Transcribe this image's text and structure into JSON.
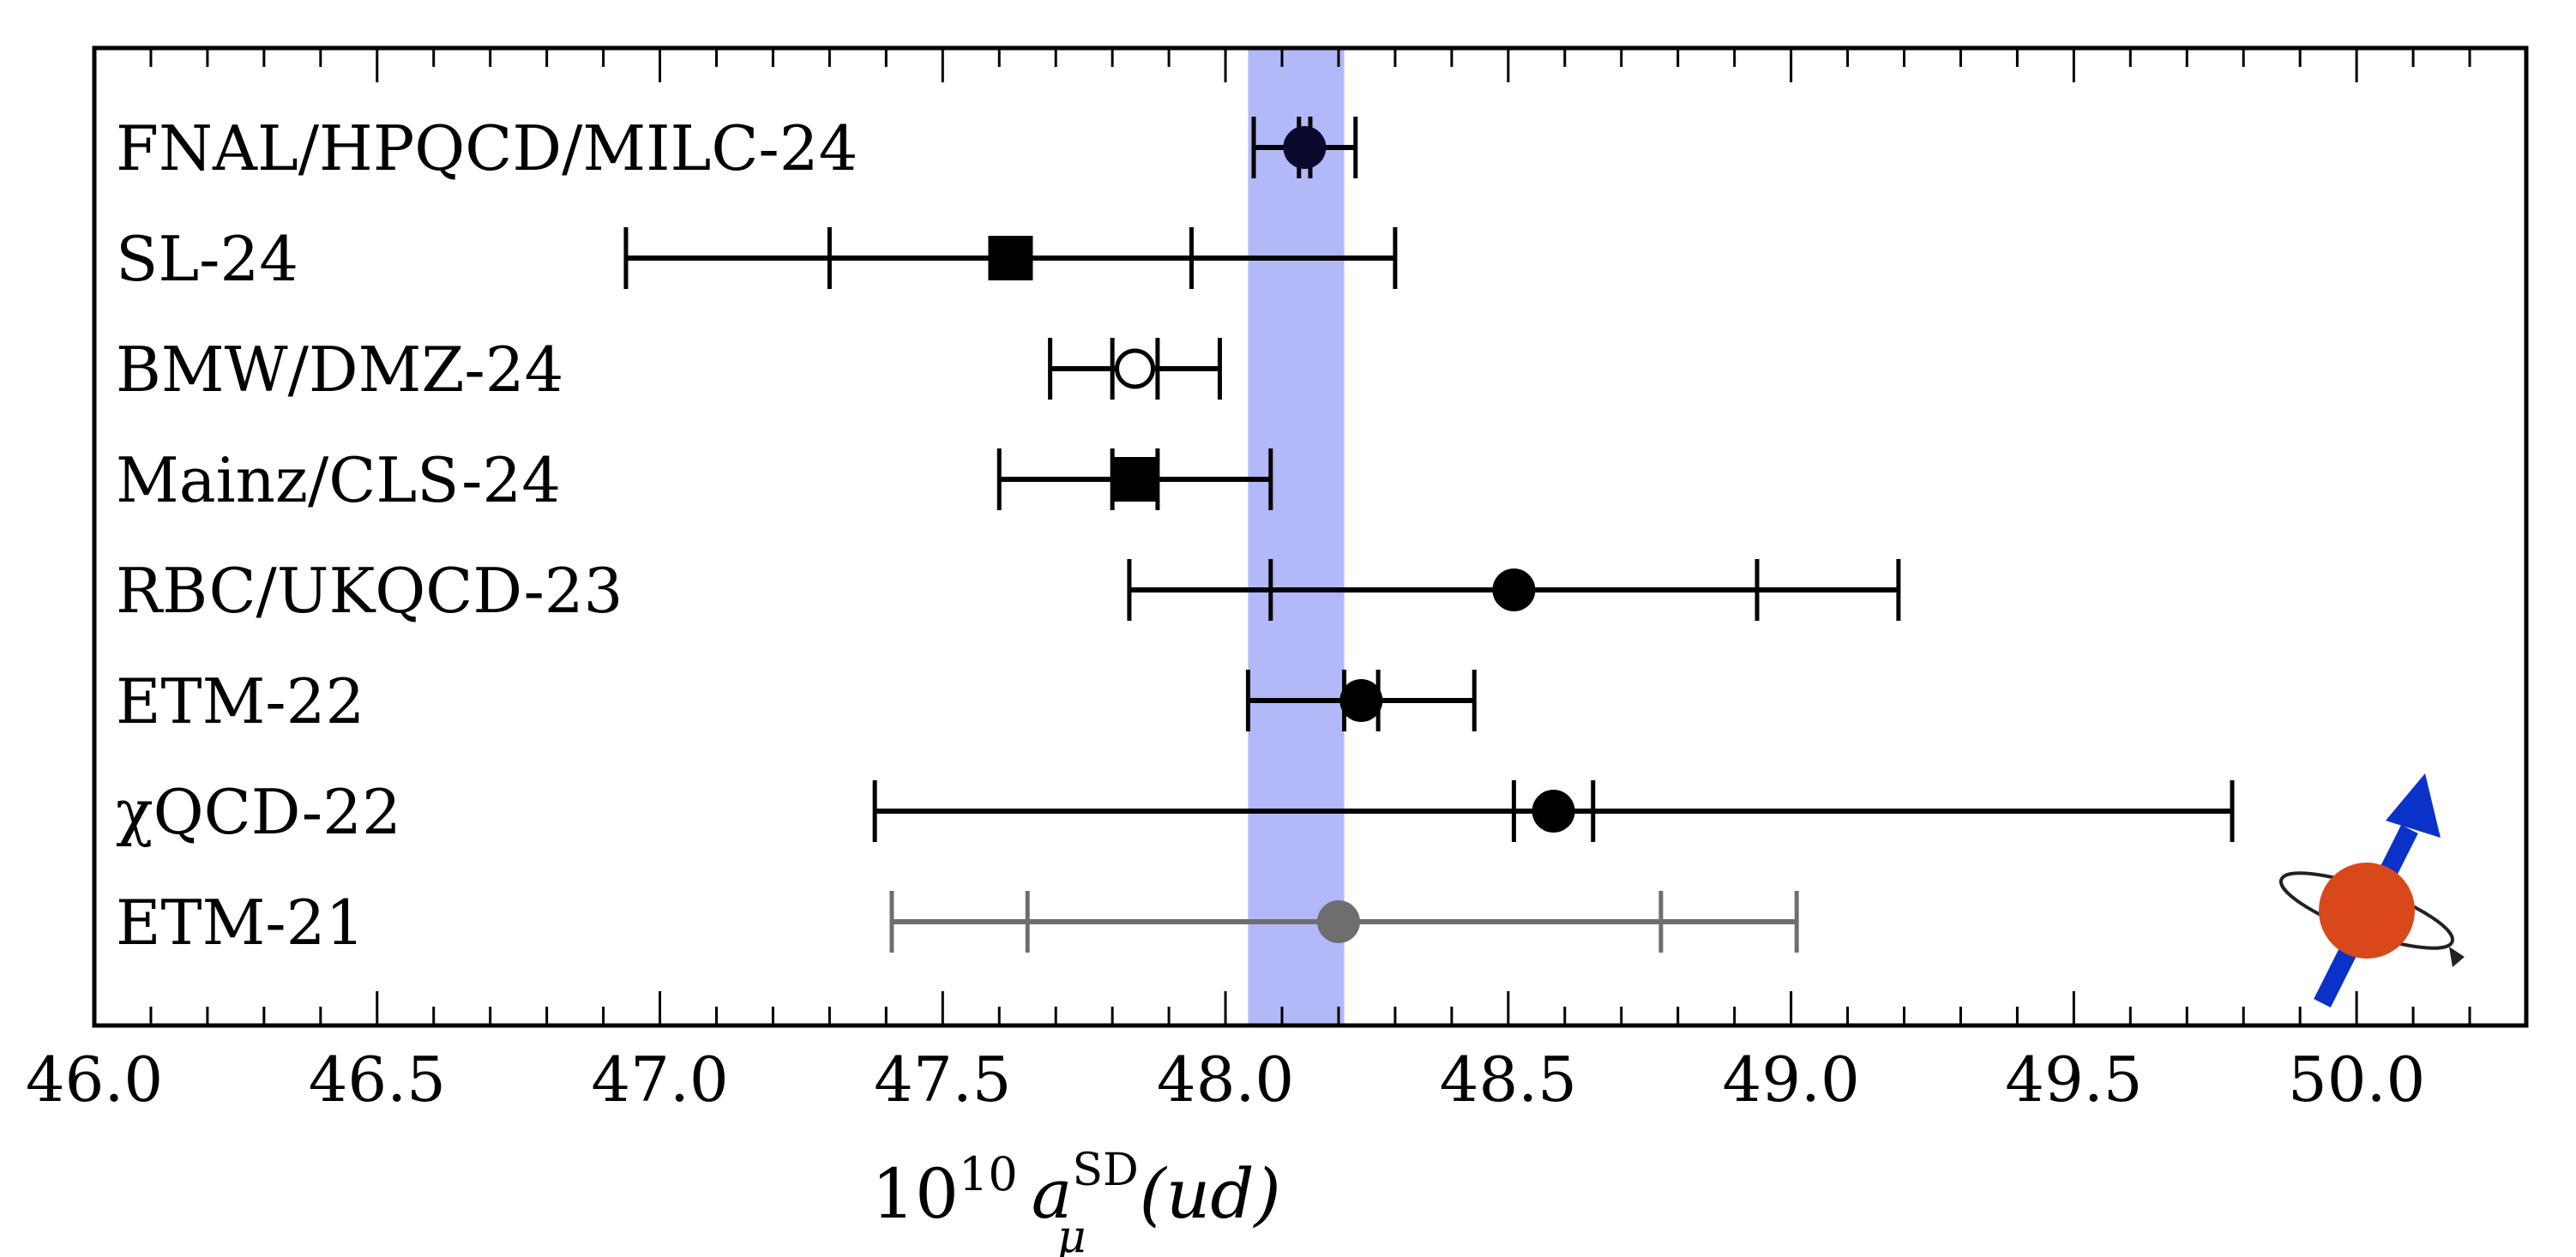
{
  "chart_data": {
    "type": "forest",
    "title": "",
    "xlabel": {
      "prefix": "10",
      "exponent": "10",
      "symbol": "a",
      "superscript": "SD",
      "subscript": "μ",
      "suffix": "(ud)"
    },
    "xlim": [
      46.0,
      50.3
    ],
    "xticks": [
      "46.0",
      "46.5",
      "47.0",
      "47.5",
      "48.0",
      "48.5",
      "49.0",
      "49.5",
      "50.0"
    ],
    "band": {
      "low": 48.04,
      "high": 48.21,
      "color": "#b3b8f8"
    },
    "rows": [
      {
        "label": "FNAL/HPQCD/MILC-24",
        "value": 48.14,
        "stat_low": 48.13,
        "stat_high": 48.15,
        "tot_low": 48.05,
        "tot_high": 48.23,
        "marker": "circle",
        "fill": "#0a0a2e",
        "color": "#000000"
      },
      {
        "label": "SL-24",
        "value": 47.62,
        "stat_low": 47.3,
        "stat_high": 47.94,
        "tot_low": 46.94,
        "tot_high": 48.3,
        "marker": "square",
        "fill": "#000000",
        "color": "#000000"
      },
      {
        "label": "BMW/DMZ-24",
        "value": 47.84,
        "stat_low": 47.8,
        "stat_high": 47.88,
        "tot_low": 47.69,
        "tot_high": 47.99,
        "marker": "circle-open",
        "fill": "#ffffff",
        "color": "#000000"
      },
      {
        "label": "Mainz/CLS-24",
        "value": 47.84,
        "stat_low": 47.8,
        "stat_high": 47.88,
        "tot_low": 47.6,
        "tot_high": 48.08,
        "marker": "square",
        "fill": "#000000",
        "color": "#000000"
      },
      {
        "label": "RBC/UKQCD-23",
        "value": 48.51,
        "stat_low": 48.08,
        "stat_high": 48.94,
        "tot_low": 47.83,
        "tot_high": 49.19,
        "marker": "circle",
        "fill": "#000000",
        "color": "#000000"
      },
      {
        "label": "ETM-22",
        "value": 48.24,
        "stat_low": 48.21,
        "stat_high": 48.27,
        "tot_low": 48.04,
        "tot_high": 48.44,
        "marker": "circle",
        "fill": "#000000",
        "color": "#000000"
      },
      {
        "label": "χQCD-22",
        "value": 48.58,
        "stat_low": 48.51,
        "stat_high": 48.65,
        "tot_low": 47.38,
        "tot_high": 49.78,
        "marker": "circle",
        "fill": "#000000",
        "color": "#000000"
      },
      {
        "label": "ETM-21",
        "value": 48.2,
        "stat_low": 47.65,
        "stat_high": 48.77,
        "tot_low": 47.41,
        "tot_high": 49.01,
        "marker": "circle",
        "fill": "#6e6e6e",
        "color": "#6e6e6e"
      }
    ]
  },
  "logo": {
    "name": "spinning-muon-logo",
    "sphere_color": "#d9481a",
    "arrow_color": "#0a32c8"
  }
}
